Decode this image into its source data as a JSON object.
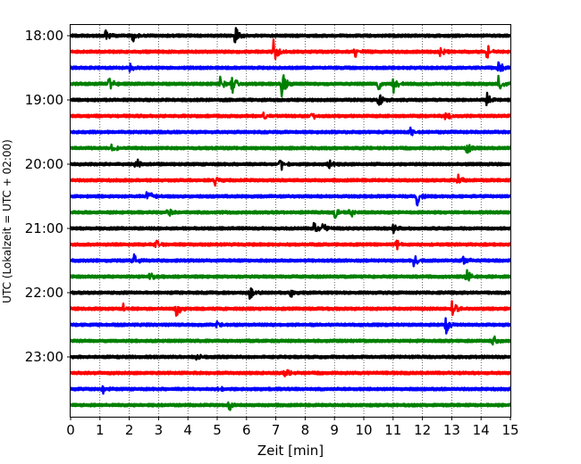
{
  "chart_data": {
    "type": "line",
    "title": "",
    "xlabel": "Zeit  [min]",
    "ylabel": "UTC (Lokalzeit = UTC + 02:00)",
    "xlim": [
      0,
      15
    ],
    "x_ticks": [
      0,
      1,
      2,
      3,
      4,
      5,
      6,
      7,
      8,
      9,
      10,
      11,
      12,
      13,
      14,
      15
    ],
    "x_tick_labels": [
      "0",
      "1",
      "2",
      "3",
      "4",
      "5",
      "6",
      "7",
      "8",
      "9",
      "10",
      "11",
      "12",
      "13",
      "14",
      "15"
    ],
    "y_tick_labels": [
      "18:00",
      "19:00",
      "20:00",
      "21:00",
      "22:00",
      "23:00"
    ],
    "vertical_grid": true,
    "grid_style": "dotted",
    "trace_colors": [
      "#000000",
      "#ff0000",
      "#0000ff",
      "#008000"
    ],
    "traces": [
      {
        "start": "18:00",
        "events": [
          [
            1.2,
            0.4
          ],
          [
            2.1,
            0.5
          ],
          [
            5.6,
            0.6
          ]
        ]
      },
      {
        "start": "18:15",
        "events": [
          [
            6.9,
            0.9
          ],
          [
            9.7,
            0.4
          ],
          [
            12.6,
            0.4
          ],
          [
            14.2,
            0.5
          ]
        ]
      },
      {
        "start": "18:30",
        "events": [
          [
            2.0,
            0.3
          ],
          [
            14.6,
            0.5
          ]
        ]
      },
      {
        "start": "18:45",
        "events": [
          [
            1.3,
            0.6
          ],
          [
            5.1,
            0.6
          ],
          [
            5.5,
            0.8
          ],
          [
            7.2,
            0.9
          ],
          [
            10.5,
            0.5
          ],
          [
            11.0,
            0.6
          ],
          [
            14.6,
            0.6
          ]
        ]
      },
      {
        "start": "19:00",
        "events": [
          [
            10.5,
            0.5
          ],
          [
            14.2,
            0.4
          ]
        ]
      },
      {
        "start": "19:15",
        "events": [
          [
            6.6,
            0.4
          ],
          [
            8.2,
            0.3
          ],
          [
            12.8,
            0.4
          ]
        ]
      },
      {
        "start": "19:30",
        "events": [
          [
            11.6,
            0.3
          ]
        ]
      },
      {
        "start": "19:45",
        "events": [
          [
            1.4,
            0.4
          ],
          [
            13.5,
            0.4
          ]
        ]
      },
      {
        "start": "20:00",
        "events": [
          [
            2.2,
            0.5
          ],
          [
            7.1,
            0.9
          ],
          [
            8.8,
            0.3
          ]
        ]
      },
      {
        "start": "20:15",
        "events": [
          [
            4.9,
            0.4
          ],
          [
            13.2,
            0.4
          ]
        ]
      },
      {
        "start": "20:30",
        "events": [
          [
            2.6,
            0.5
          ],
          [
            11.8,
            0.8
          ]
        ]
      },
      {
        "start": "20:45",
        "events": [
          [
            3.3,
            0.4
          ],
          [
            9.0,
            0.6
          ],
          [
            9.5,
            0.5
          ]
        ]
      },
      {
        "start": "21:00",
        "events": [
          [
            8.3,
            0.5
          ],
          [
            8.6,
            0.4
          ],
          [
            11.0,
            0.3
          ]
        ]
      },
      {
        "start": "21:15",
        "events": [
          [
            2.9,
            0.4
          ],
          [
            11.1,
            0.4
          ]
        ]
      },
      {
        "start": "21:30",
        "events": [
          [
            2.1,
            0.6
          ],
          [
            11.7,
            0.5
          ],
          [
            13.4,
            0.5
          ]
        ]
      },
      {
        "start": "21:45",
        "events": [
          [
            2.7,
            0.4
          ],
          [
            13.5,
            0.5
          ]
        ]
      },
      {
        "start": "22:00",
        "events": [
          [
            6.1,
            0.5
          ],
          [
            7.5,
            0.3
          ]
        ]
      },
      {
        "start": "22:15",
        "events": [
          [
            1.8,
            0.4
          ],
          [
            3.6,
            0.6
          ],
          [
            13.0,
            0.7
          ]
        ]
      },
      {
        "start": "22:30",
        "events": [
          [
            5.0,
            0.3
          ],
          [
            12.8,
            0.6
          ]
        ]
      },
      {
        "start": "22:45",
        "events": [
          [
            14.4,
            0.4
          ]
        ]
      },
      {
        "start": "23:00",
        "events": [
          [
            4.3,
            0.2
          ]
        ]
      },
      {
        "start": "23:15",
        "events": [
          [
            7.3,
            0.3
          ]
        ]
      },
      {
        "start": "23:30",
        "events": [
          [
            1.1,
            0.3
          ],
          [
            5.0,
            0.3
          ]
        ]
      },
      {
        "start": "23:45",
        "events": [
          [
            5.4,
            0.4
          ]
        ]
      }
    ]
  }
}
